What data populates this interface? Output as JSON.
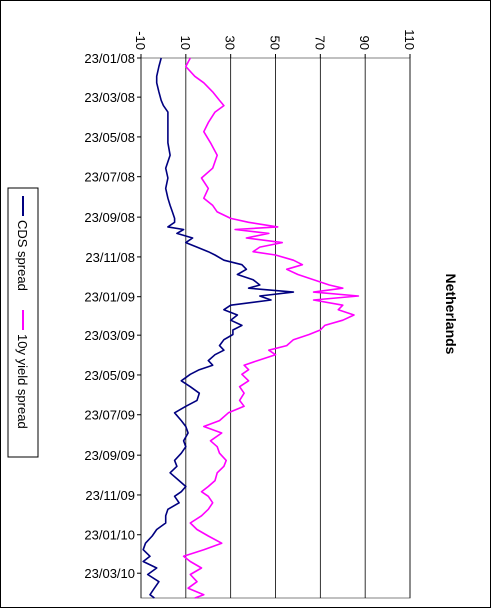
{
  "chart_data": {
    "type": "line",
    "title": "Netherlands",
    "xlabel": "",
    "ylabel": "",
    "ylim": [
      -10,
      110
    ],
    "yticks": [
      -10,
      10,
      30,
      50,
      70,
      90,
      110
    ],
    "x_tick_labels": [
      "23/01/08",
      "23/03/08",
      "23/05/08",
      "23/07/08",
      "23/09/08",
      "23/11/08",
      "23/01/09",
      "23/03/09",
      "23/05/09",
      "23/07/09",
      "23/09/09",
      "23/11/09",
      "23/01/10",
      "23/03/10"
    ],
    "x_range": [
      "2008-01-23",
      "2010-04-30"
    ],
    "grid": true,
    "legend_placement": "left",
    "series": [
      {
        "name": "CDS spread",
        "color": "#000080",
        "points": [
          [
            "2008-01-23",
            -1
          ],
          [
            "2008-02-05",
            -2
          ],
          [
            "2008-02-20",
            -3
          ],
          [
            "2008-03-01",
            -3
          ],
          [
            "2008-03-15",
            -2
          ],
          [
            "2008-03-28",
            -1
          ],
          [
            "2008-04-05",
            0
          ],
          [
            "2008-04-15",
            2
          ],
          [
            "2008-05-01",
            2
          ],
          [
            "2008-05-15",
            2
          ],
          [
            "2008-06-01",
            2
          ],
          [
            "2008-06-20",
            3
          ],
          [
            "2008-07-10",
            1
          ],
          [
            "2008-07-25",
            2
          ],
          [
            "2008-08-10",
            1
          ],
          [
            "2008-08-25",
            2
          ],
          [
            "2008-09-05",
            3
          ],
          [
            "2008-09-15",
            4
          ],
          [
            "2008-09-25",
            5
          ],
          [
            "2008-10-01",
            5
          ],
          [
            "2008-10-08",
            2
          ],
          [
            "2008-10-12",
            9
          ],
          [
            "2008-10-18",
            6
          ],
          [
            "2008-10-25",
            13
          ],
          [
            "2008-11-01",
            10
          ],
          [
            "2008-11-08",
            15
          ],
          [
            "2008-11-15",
            20
          ],
          [
            "2008-11-20",
            23
          ],
          [
            "2008-11-28",
            27
          ],
          [
            "2008-12-05",
            35
          ],
          [
            "2008-12-12",
            37
          ],
          [
            "2008-12-20",
            33
          ],
          [
            "2008-12-28",
            40
          ],
          [
            "2009-01-05",
            43
          ],
          [
            "2009-01-10",
            38
          ],
          [
            "2009-01-16",
            58
          ],
          [
            "2009-01-22",
            43
          ],
          [
            "2009-01-28",
            48
          ],
          [
            "2009-02-05",
            30
          ],
          [
            "2009-02-12",
            27
          ],
          [
            "2009-02-20",
            33
          ],
          [
            "2009-02-28",
            30
          ],
          [
            "2009-03-08",
            35
          ],
          [
            "2009-03-15",
            31
          ],
          [
            "2009-03-22",
            31
          ],
          [
            "2009-03-30",
            27
          ],
          [
            "2009-04-08",
            25
          ],
          [
            "2009-04-15",
            27
          ],
          [
            "2009-04-22",
            23
          ],
          [
            "2009-05-01",
            20
          ],
          [
            "2009-05-08",
            22
          ],
          [
            "2009-05-15",
            16
          ],
          [
            "2009-05-22",
            12
          ],
          [
            "2009-06-01",
            8
          ],
          [
            "2009-06-10",
            12
          ],
          [
            "2009-06-20",
            16
          ],
          [
            "2009-07-01",
            15
          ],
          [
            "2009-07-10",
            10
          ],
          [
            "2009-07-20",
            5
          ],
          [
            "2009-08-01",
            8
          ],
          [
            "2009-08-10",
            10
          ],
          [
            "2009-08-20",
            11
          ],
          [
            "2009-09-01",
            9
          ],
          [
            "2009-09-10",
            10
          ],
          [
            "2009-09-20",
            8
          ],
          [
            "2009-10-01",
            5
          ],
          [
            "2009-10-10",
            6
          ],
          [
            "2009-10-20",
            3
          ],
          [
            "2009-11-01",
            7
          ],
          [
            "2009-11-10",
            10
          ],
          [
            "2009-11-18",
            8
          ],
          [
            "2009-11-25",
            5
          ],
          [
            "2009-12-05",
            7
          ],
          [
            "2009-12-15",
            2
          ],
          [
            "2009-12-25",
            1
          ],
          [
            "2010-01-05",
            1
          ],
          [
            "2010-01-15",
            -3
          ],
          [
            "2010-01-25",
            -5
          ],
          [
            "2010-02-05",
            -8
          ],
          [
            "2010-02-15",
            -9
          ],
          [
            "2010-02-25",
            -6
          ],
          [
            "2010-03-05",
            -9
          ],
          [
            "2010-03-15",
            -3
          ],
          [
            "2010-03-25",
            -7
          ],
          [
            "2010-04-05",
            -2
          ],
          [
            "2010-04-15",
            -4
          ],
          [
            "2010-04-25",
            -6
          ],
          [
            "2010-04-30",
            -4
          ]
        ]
      },
      {
        "name": "10y yield spread",
        "color": "#FF00FF",
        "points": [
          [
            "2008-01-23",
            12
          ],
          [
            "2008-02-05",
            10
          ],
          [
            "2008-02-20",
            14
          ],
          [
            "2008-03-01",
            18
          ],
          [
            "2008-03-15",
            22
          ],
          [
            "2008-03-28",
            25
          ],
          [
            "2008-04-05",
            27
          ],
          [
            "2008-04-15",
            23
          ],
          [
            "2008-05-01",
            20
          ],
          [
            "2008-05-15",
            18
          ],
          [
            "2008-06-01",
            21
          ],
          [
            "2008-06-20",
            24
          ],
          [
            "2008-07-10",
            22
          ],
          [
            "2008-07-25",
            17
          ],
          [
            "2008-08-10",
            20
          ],
          [
            "2008-08-25",
            18
          ],
          [
            "2008-09-05",
            22
          ],
          [
            "2008-09-15",
            24
          ],
          [
            "2008-09-25",
            30
          ],
          [
            "2008-10-01",
            38
          ],
          [
            "2008-10-08",
            51
          ],
          [
            "2008-10-12",
            32
          ],
          [
            "2008-10-18",
            47
          ],
          [
            "2008-10-25",
            37
          ],
          [
            "2008-11-01",
            53
          ],
          [
            "2008-11-08",
            43
          ],
          [
            "2008-11-15",
            40
          ],
          [
            "2008-11-20",
            50
          ],
          [
            "2008-11-28",
            58
          ],
          [
            "2008-12-05",
            62
          ],
          [
            "2008-12-12",
            55
          ],
          [
            "2008-12-20",
            60
          ],
          [
            "2008-12-28",
            67
          ],
          [
            "2009-01-05",
            74
          ],
          [
            "2009-01-10",
            80
          ],
          [
            "2009-01-16",
            67
          ],
          [
            "2009-01-22",
            87
          ],
          [
            "2009-01-28",
            67
          ],
          [
            "2009-02-05",
            80
          ],
          [
            "2009-02-12",
            78
          ],
          [
            "2009-02-20",
            85
          ],
          [
            "2009-02-28",
            80
          ],
          [
            "2009-03-08",
            72
          ],
          [
            "2009-03-15",
            70
          ],
          [
            "2009-03-22",
            65
          ],
          [
            "2009-03-30",
            58
          ],
          [
            "2009-04-08",
            55
          ],
          [
            "2009-04-15",
            47
          ],
          [
            "2009-04-22",
            50
          ],
          [
            "2009-05-01",
            42
          ],
          [
            "2009-05-08",
            36
          ],
          [
            "2009-05-15",
            38
          ],
          [
            "2009-05-22",
            35
          ],
          [
            "2009-06-01",
            38
          ],
          [
            "2009-06-10",
            34
          ],
          [
            "2009-06-20",
            36
          ],
          [
            "2009-07-01",
            34
          ],
          [
            "2009-07-10",
            36
          ],
          [
            "2009-07-20",
            29
          ],
          [
            "2009-08-01",
            25
          ],
          [
            "2009-08-10",
            18
          ],
          [
            "2009-08-20",
            26
          ],
          [
            "2009-09-01",
            21
          ],
          [
            "2009-09-10",
            24
          ],
          [
            "2009-09-20",
            25
          ],
          [
            "2009-10-01",
            28
          ],
          [
            "2009-10-10",
            27
          ],
          [
            "2009-10-20",
            24
          ],
          [
            "2009-11-01",
            23
          ],
          [
            "2009-11-10",
            20
          ],
          [
            "2009-11-18",
            17
          ],
          [
            "2009-11-25",
            20
          ],
          [
            "2009-12-05",
            22
          ],
          [
            "2009-12-15",
            20
          ],
          [
            "2009-12-25",
            17
          ],
          [
            "2010-01-05",
            12
          ],
          [
            "2010-01-15",
            15
          ],
          [
            "2010-01-25",
            20
          ],
          [
            "2010-02-05",
            26
          ],
          [
            "2010-02-15",
            18
          ],
          [
            "2010-02-25",
            9
          ],
          [
            "2010-03-05",
            12
          ],
          [
            "2010-03-15",
            17
          ],
          [
            "2010-03-25",
            12
          ],
          [
            "2010-04-05",
            15
          ],
          [
            "2010-04-15",
            11
          ],
          [
            "2010-04-25",
            18
          ],
          [
            "2010-04-30",
            14
          ]
        ]
      }
    ]
  }
}
